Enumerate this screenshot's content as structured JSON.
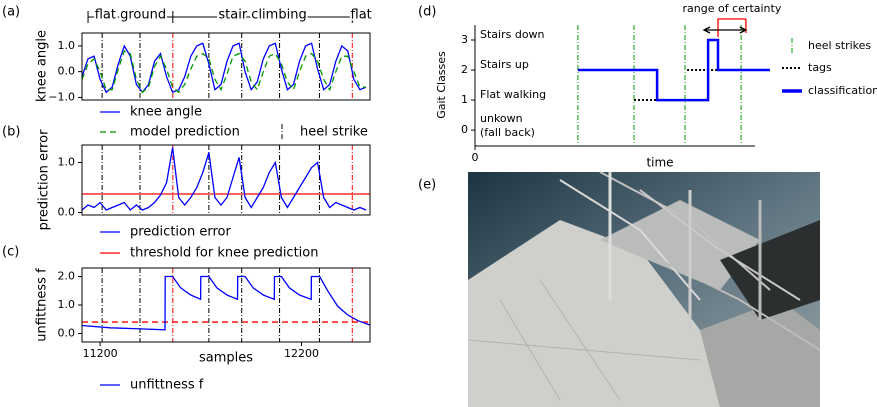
{
  "chart_data": [
    {
      "type": "line",
      "panel_label": "(a)",
      "ylabel": "knee angle",
      "xlim": [
        11110,
        12540
      ],
      "ylim": [
        -1.1,
        1.5
      ],
      "yticks": [
        {
          "value": -1,
          "label": "−1.0"
        },
        {
          "value": 0,
          "label": "0.0"
        },
        {
          "value": 1,
          "label": "1.0"
        }
      ],
      "x": [
        11110,
        11140,
        11170,
        11200,
        11230,
        11260,
        11290,
        11320,
        11350,
        11380,
        11410,
        11440,
        11470,
        11500,
        11530,
        11560,
        11590,
        11620,
        11650,
        11680,
        11710,
        11740,
        11770,
        11800,
        11830,
        11860,
        11890,
        11920,
        11950,
        11980,
        12010,
        12040,
        12070,
        12100,
        12130,
        12160,
        12190,
        12220,
        12250,
        12280,
        12310,
        12340,
        12370,
        12400,
        12430,
        12460,
        12490,
        12520
      ],
      "series": [
        {
          "name": "knee angle",
          "color": "#0000ff",
          "linestyle": "solid",
          "values": [
            -0.2,
            0.5,
            0.6,
            -0.3,
            -0.8,
            -0.6,
            0.3,
            1.0,
            0.6,
            -0.5,
            -0.8,
            -0.5,
            0.4,
            0.7,
            -0.2,
            -0.8,
            -0.7,
            -0.2,
            0.6,
            1.0,
            1.1,
            0.3,
            -0.7,
            -0.5,
            0.4,
            1.0,
            1.1,
            0.0,
            -0.7,
            -0.4,
            0.5,
            1.0,
            1.1,
            0.1,
            -0.7,
            -0.5,
            0.4,
            1.0,
            1.1,
            0.1,
            -0.7,
            -0.5,
            0.4,
            1.0,
            0.8,
            -0.3,
            -0.7,
            -0.6
          ]
        },
        {
          "name": "model prediction",
          "color": "#009900",
          "linestyle": "dashed",
          "values": [
            -0.3,
            0.3,
            0.5,
            0.0,
            -0.7,
            -0.7,
            0.1,
            0.8,
            0.7,
            -0.3,
            -0.8,
            -0.6,
            0.2,
            0.6,
            0.1,
            -0.6,
            -0.8,
            -0.5,
            0.1,
            0.6,
            0.7,
            0.5,
            -0.3,
            -0.7,
            -0.1,
            0.6,
            0.7,
            0.4,
            -0.4,
            -0.7,
            0.0,
            0.6,
            0.7,
            0.3,
            -0.4,
            -0.7,
            0.0,
            0.6,
            0.7,
            0.4,
            -0.3,
            -0.7,
            0.0,
            0.6,
            0.6,
            0.0,
            -0.6,
            -0.6
          ]
        }
      ],
      "heel_strikes": {
        "name": "heel strike",
        "color": "#000000",
        "x": [
          11210,
          11398,
          11740,
          11903,
          12091,
          12289
        ]
      },
      "transitions": {
        "color": "#ff0000",
        "x": [
          11561,
          12452
        ]
      },
      "segments": [
        {
          "label": "flat ground",
          "x": [
            11140,
            11561
          ]
        },
        {
          "label": "stair climbing",
          "x": [
            11561,
            12452
          ]
        },
        {
          "label": "flat",
          "x": [
            12452,
            12540
          ]
        }
      ]
    },
    {
      "type": "line",
      "panel_label": "(b)",
      "ylabel": "prediction error",
      "xlim": [
        11110,
        12540
      ],
      "ylim": [
        -0.05,
        1.35
      ],
      "yticks": [
        {
          "value": 0,
          "label": "0.0"
        },
        {
          "value": 1,
          "label": "1.0"
        }
      ],
      "x": [
        11110,
        11140,
        11170,
        11200,
        11230,
        11260,
        11290,
        11320,
        11350,
        11380,
        11410,
        11440,
        11470,
        11500,
        11530,
        11560,
        11590,
        11620,
        11650,
        11680,
        11710,
        11740,
        11770,
        11800,
        11830,
        11860,
        11890,
        11920,
        11950,
        11980,
        12010,
        12040,
        12070,
        12100,
        12130,
        12160,
        12190,
        12220,
        12250,
        12280,
        12310,
        12340,
        12370,
        12400,
        12430,
        12460,
        12490,
        12520
      ],
      "series": [
        {
          "name": "prediction error",
          "color": "#0000ff",
          "linestyle": "solid",
          "values": [
            0.05,
            0.15,
            0.1,
            0.2,
            0.05,
            0.1,
            0.15,
            0.2,
            0.05,
            0.15,
            0.05,
            0.1,
            0.2,
            0.35,
            0.6,
            1.3,
            0.3,
            0.15,
            0.3,
            0.5,
            0.8,
            1.2,
            0.3,
            0.15,
            0.3,
            0.7,
            1.1,
            0.3,
            0.1,
            0.3,
            0.5,
            0.8,
            1.0,
            0.3,
            0.1,
            0.3,
            0.5,
            0.7,
            0.9,
            1.0,
            0.3,
            0.1,
            0.2,
            0.15,
            0.1,
            0.05,
            0.1,
            0.05
          ]
        }
      ],
      "hlines": [
        {
          "name": "threshold for knee prediction",
          "color": "#ff0000",
          "linestyle": "solid",
          "value": 0.37
        }
      ],
      "heel_strikes": {
        "color": "#000000",
        "x": [
          11210,
          11398,
          11740,
          11903,
          12091,
          12289
        ]
      },
      "transitions": {
        "color": "#ff0000",
        "x": [
          11561,
          12452
        ]
      }
    },
    {
      "type": "line",
      "panel_label": "(c)",
      "ylabel": "unfittness f",
      "xlabel": "samples",
      "xlim": [
        11110,
        12540
      ],
      "xticks": [
        11200,
        12200
      ],
      "ylim": [
        -0.3,
        2.3
      ],
      "yticks": [
        {
          "value": 0,
          "label": "0.0"
        },
        {
          "value": 1,
          "label": "1.0"
        },
        {
          "value": 2,
          "label": "2.0"
        }
      ],
      "x": [
        11110,
        11250,
        11400,
        11522,
        11523,
        11560,
        11600,
        11650,
        11699,
        11700,
        11740,
        11780,
        11830,
        11882,
        11883,
        11920,
        11960,
        12010,
        12065,
        12066,
        12100,
        12140,
        12190,
        12248,
        12249,
        12290,
        12330,
        12380,
        12430,
        12480,
        12537
      ],
      "series": [
        {
          "name": "unfittness f",
          "color": "#0000ff",
          "linestyle": "solid",
          "values": [
            0.28,
            0.2,
            0.16,
            0.13,
            2.0,
            2.0,
            1.6,
            1.35,
            1.2,
            2.0,
            2.0,
            1.6,
            1.35,
            1.2,
            2.0,
            2.0,
            1.6,
            1.35,
            1.2,
            2.0,
            2.0,
            1.6,
            1.35,
            1.2,
            2.0,
            2.0,
            1.5,
            0.95,
            0.65,
            0.45,
            0.3
          ]
        }
      ],
      "hlines": [
        {
          "color": "#ff0000",
          "linestyle": "dashed",
          "value": 0.4
        }
      ],
      "heel_strikes": {
        "color": "#000000",
        "x": [
          11210,
          11398,
          11740,
          11903,
          12091,
          12289
        ]
      },
      "transitions": {
        "color": "#ff0000",
        "x": [
          11561,
          12452
        ]
      }
    },
    {
      "type": "step",
      "panel_label": "(d)",
      "ylabel": "Gait Classes",
      "xlabel": "time",
      "xlim": [
        0,
        100
      ],
      "xticks": [
        0
      ],
      "ylim": [
        -0.53,
        3.5
      ],
      "yticks": [
        0,
        1,
        2,
        3
      ],
      "class_labels": [
        "unkown\n(fall back)",
        "Flat walking",
        "Stairs up",
        "Stairs down"
      ],
      "heel_strikes": {
        "name": "heel strikes",
        "color": "#009900",
        "x": [
          34.3,
          53,
          70,
          88.7
        ]
      },
      "tags": {
        "name": "tags",
        "color": "#000000",
        "segments": [
          {
            "x": [
              34.3,
              60.7
            ],
            "value": 2
          },
          {
            "x": [
              53,
              77.7
            ],
            "value": 1
          },
          {
            "x": [
              70.7,
              98.3
            ],
            "value": 2
          }
        ]
      },
      "series": [
        {
          "name": "classification",
          "color": "#0000ff",
          "x": [
            34.3,
            60.7,
            60.7,
            77.7,
            77.7,
            81,
            81,
            98.3
          ],
          "values": [
            2,
            2,
            1,
            1,
            3,
            3,
            2,
            2
          ]
        }
      ],
      "certainty_range": {
        "label": "range of certainty",
        "color": "#ff0000",
        "x": [
          81,
          90.3
        ]
      }
    }
  ],
  "photo_panel": {
    "label": "(e)"
  }
}
